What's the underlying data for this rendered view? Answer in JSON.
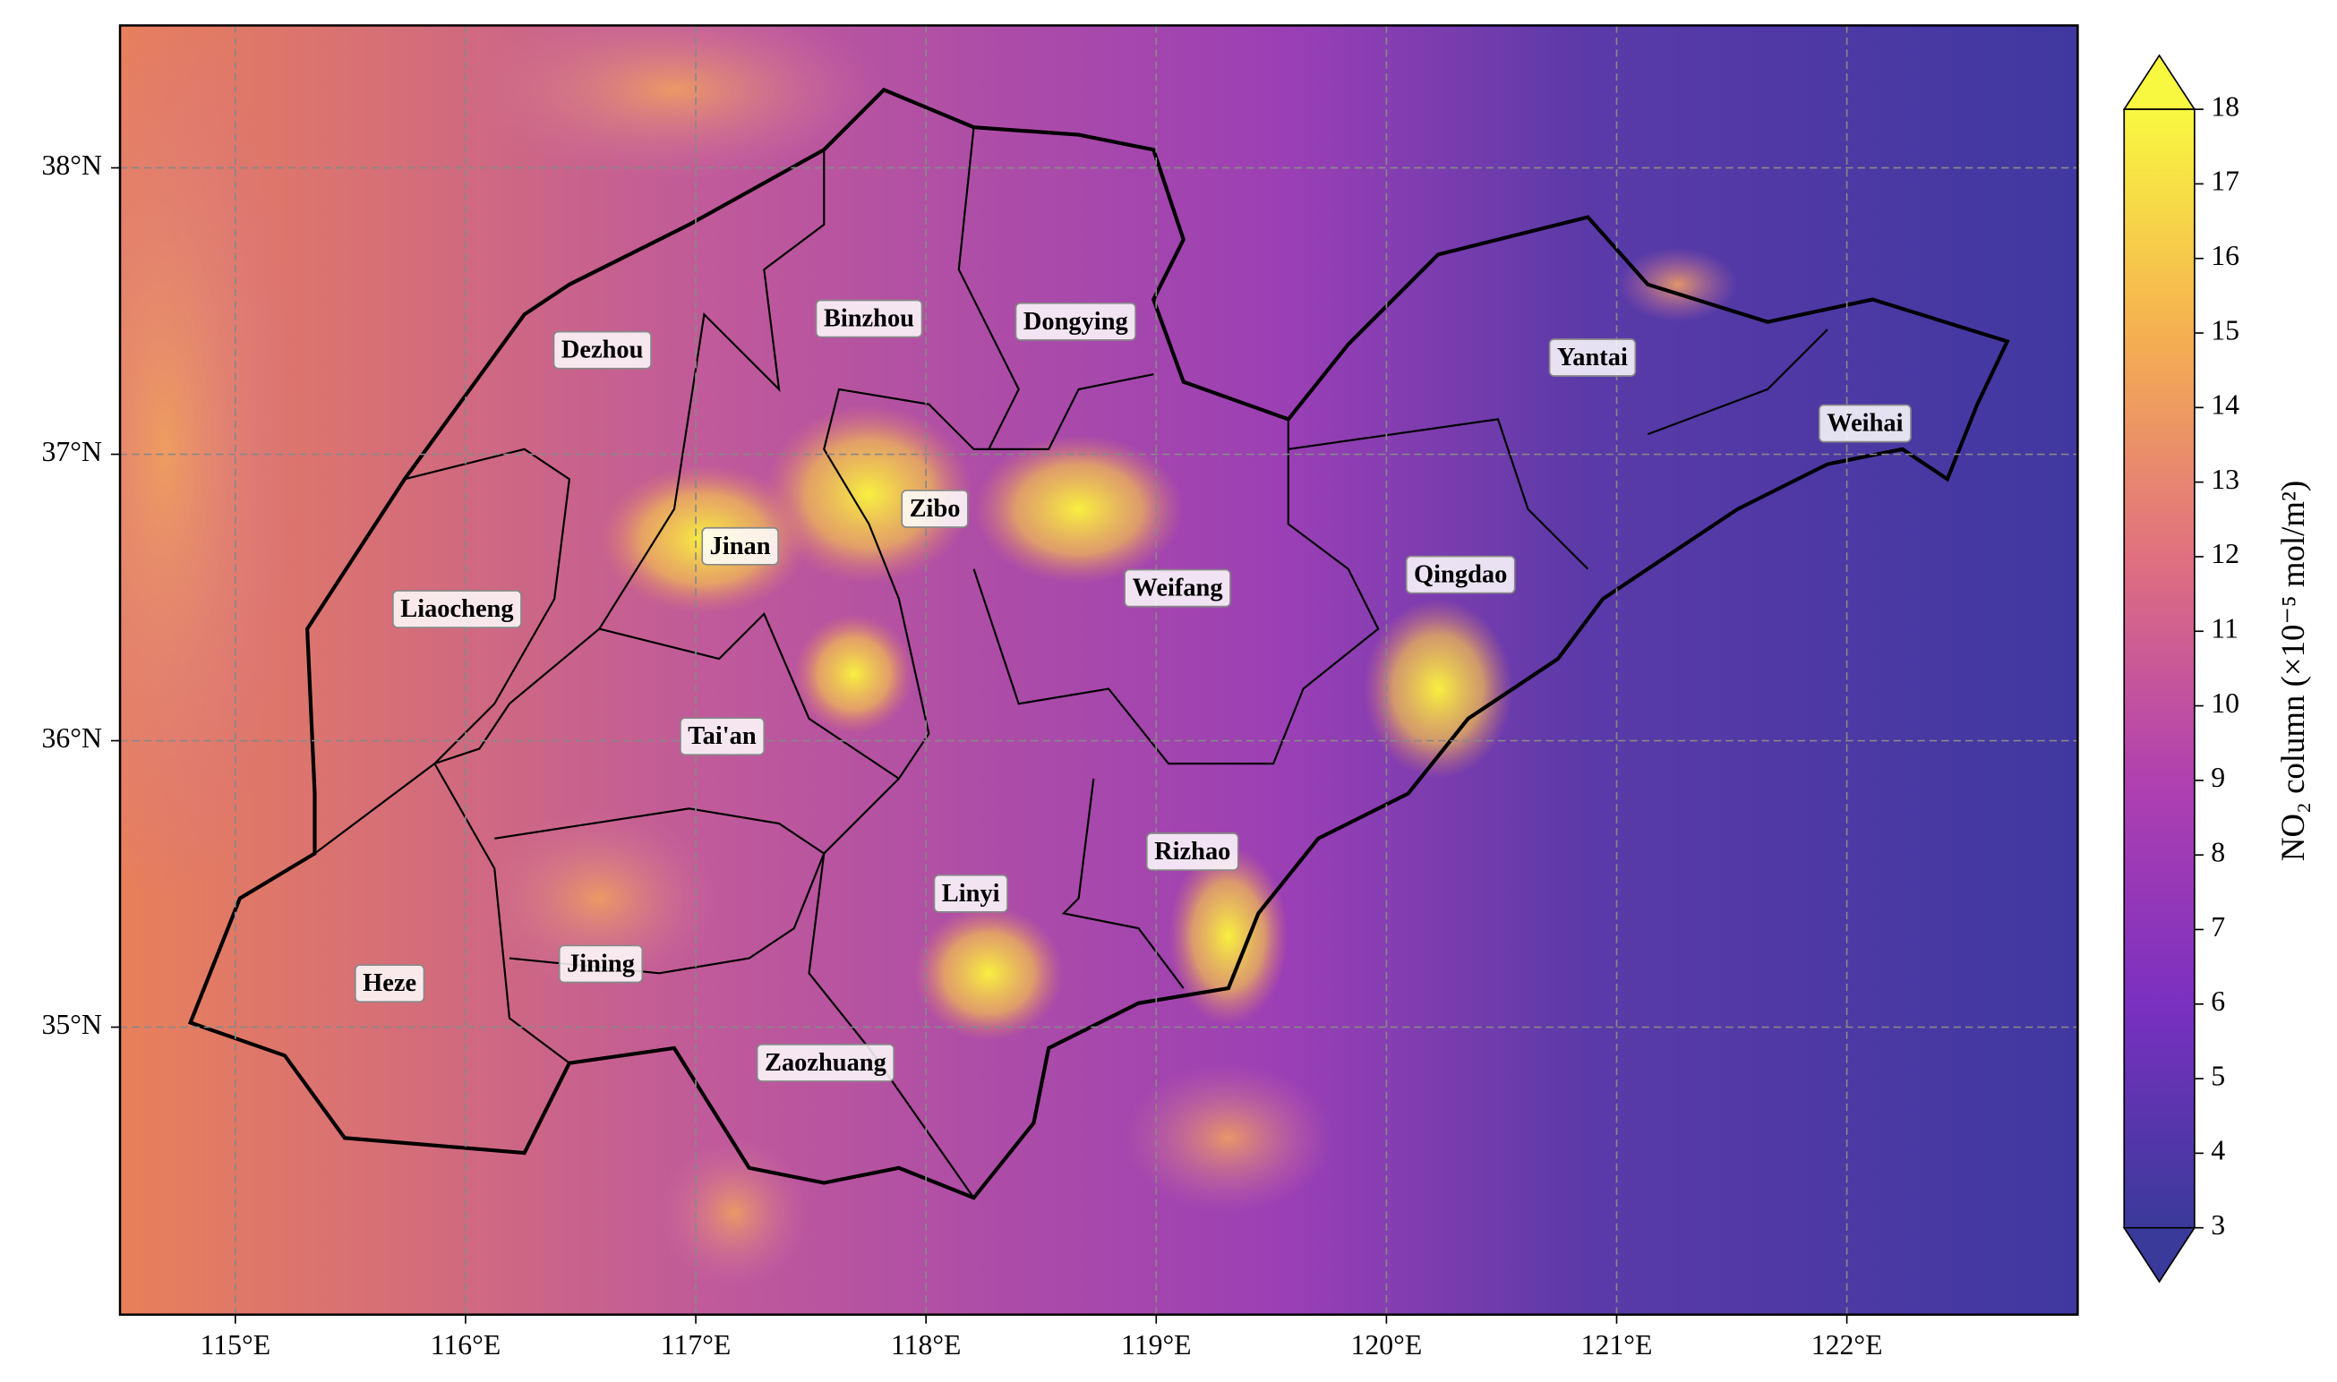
{
  "map": {
    "xticks": [
      {
        "value": 115,
        "label": "115°E"
      },
      {
        "value": 116,
        "label": "116°E"
      },
      {
        "value": 117,
        "label": "117°E"
      },
      {
        "value": 118,
        "label": "118°E"
      },
      {
        "value": 119,
        "label": "119°E"
      },
      {
        "value": 120,
        "label": "120°E"
      },
      {
        "value": 121,
        "label": "121°E"
      },
      {
        "value": 122,
        "label": "122°E"
      }
    ],
    "yticks": [
      {
        "value": 35,
        "label": "35°N"
      },
      {
        "value": 36,
        "label": "36°N"
      },
      {
        "value": 37,
        "label": "37°N"
      },
      {
        "value": 38,
        "label": "38°N"
      }
    ],
    "cities": [
      "Dezhou",
      "Binzhou",
      "Dongying",
      "Yantai",
      "Weihai",
      "Zibo",
      "Jinan",
      "Liaocheng",
      "Weifang",
      "Qingdao",
      "Tai'an",
      "Rizhao",
      "Linyi",
      "Heze",
      "Jining",
      "Zaozhuang"
    ],
    "colorbar": {
      "label": "NO₂ column (×10⁻⁵ mol/m²)",
      "lim": [
        3,
        18
      ],
      "ticks": [
        3,
        4,
        5,
        6,
        7,
        8,
        9,
        10,
        11,
        12,
        13,
        14,
        15,
        16,
        17,
        18
      ]
    }
  }
}
